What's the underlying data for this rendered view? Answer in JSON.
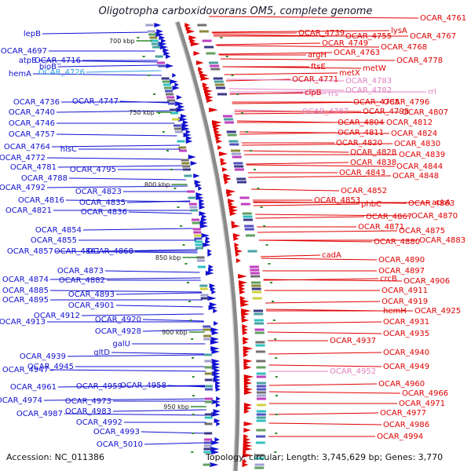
{
  "title": "Oligotropha carboxidovorans OM5, complete genome",
  "accession": "Accession: NC_011386",
  "topology": "Topology: circular; Length: 3,745,629 bp; Genes: 3,770",
  "colors": {
    "forward": "#e00000",
    "reverse": "#1010d0",
    "rna_forward": "#e080c0",
    "rna_reverse": "#30a0e0",
    "backbone": "#888888",
    "tick": "#2e8b2e"
  },
  "kbp_marks": [
    {
      "label": "700 kbp",
      "pos": 700
    },
    {
      "label": "750 kbp",
      "pos": 750
    },
    {
      "label": "800 kbp",
      "pos": 800
    },
    {
      "label": "850 kbp",
      "pos": 850
    },
    {
      "label": "900 kbp",
      "pos": 900
    },
    {
      "label": "950 kbp",
      "pos": 950
    }
  ],
  "left_labels": [
    {
      "text": "lepB",
      "color": "#1010d0"
    },
    {
      "text": "OCAR_4697",
      "color": "#1010d0"
    },
    {
      "text": "atpB",
      "color": "#1010d0"
    },
    {
      "text": "bioB",
      "color": "#1010d0"
    },
    {
      "text": "OCAR_4716",
      "color": "#1010d0"
    },
    {
      "text": "hemA",
      "color": "#1010d0"
    },
    {
      "text": "OCAR_4726",
      "color": "#30a0e0"
    },
    {
      "text": "OCAR_4736",
      "color": "#1010d0"
    },
    {
      "text": "OCAR_4747",
      "color": "#1010d0"
    },
    {
      "text": "OCAR_4740",
      "color": "#1010d0"
    },
    {
      "text": "OCAR_4746",
      "color": "#1010d0"
    },
    {
      "text": "OCAR_4757",
      "color": "#1010d0"
    },
    {
      "text": "OCAR_4764",
      "color": "#1010d0"
    },
    {
      "text": "hisC",
      "color": "#1010d0"
    },
    {
      "text": "OCAR_4772",
      "color": "#1010d0"
    },
    {
      "text": "OCAR_4781",
      "color": "#1010d0"
    },
    {
      "text": "OCAR_4795",
      "color": "#1010d0"
    },
    {
      "text": "OCAR_4788",
      "color": "#1010d0"
    },
    {
      "text": "OCAR_4792",
      "color": "#1010d0"
    },
    {
      "text": "OCAR_4823",
      "color": "#1010d0"
    },
    {
      "text": "OCAR_4816",
      "color": "#1010d0"
    },
    {
      "text": "OCAR_4835",
      "color": "#1010d0"
    },
    {
      "text": "OCAR_4821",
      "color": "#1010d0"
    },
    {
      "text": "OCAR_4836",
      "color": "#1010d0"
    },
    {
      "text": "OCAR_4854",
      "color": "#1010d0"
    },
    {
      "text": "OCAR_4855",
      "color": "#1010d0"
    },
    {
      "text": "OCAR_4857",
      "color": "#1010d0"
    },
    {
      "text": "OCAR_4861",
      "color": "#1010d0"
    },
    {
      "text": "OCAR_4868",
      "color": "#1010d0"
    },
    {
      "text": "OCAR_4873",
      "color": "#1010d0"
    },
    {
      "text": "OCAR_4874",
      "color": "#1010d0"
    },
    {
      "text": "OCAR_4882",
      "color": "#1010d0"
    },
    {
      "text": "OCAR_4885",
      "color": "#1010d0"
    },
    {
      "text": "OCAR_4893",
      "color": "#1010d0"
    },
    {
      "text": "OCAR_4895",
      "color": "#1010d0"
    },
    {
      "text": "OCAR_4901",
      "color": "#1010d0"
    },
    {
      "text": "OCAR_4912",
      "color": "#1010d0"
    },
    {
      "text": "OCAR_4913",
      "color": "#1010d0"
    },
    {
      "text": "OCAR_4920",
      "color": "#1010d0"
    },
    {
      "text": "OCAR_4928",
      "color": "#1010d0"
    },
    {
      "text": "galU",
      "color": "#1010d0"
    },
    {
      "text": "gltD",
      "color": "#1010d0"
    },
    {
      "text": "OCAR_4939",
      "color": "#1010d0"
    },
    {
      "text": "OCAR_4945",
      "color": "#1010d0"
    },
    {
      "text": "OCAR_4947",
      "color": "#1010d0"
    },
    {
      "text": "OCAR_4961",
      "color": "#1010d0"
    },
    {
      "text": "OCAR_4959",
      "color": "#1010d0"
    },
    {
      "text": "OCAR_4958",
      "color": "#1010d0"
    },
    {
      "text": "OCAR_4974",
      "color": "#1010d0"
    },
    {
      "text": "OCAR_4973",
      "color": "#1010d0"
    },
    {
      "text": "OCAR_4987",
      "color": "#1010d0"
    },
    {
      "text": "OCAR_4983",
      "color": "#1010d0"
    },
    {
      "text": "OCAR_4992",
      "color": "#1010d0"
    },
    {
      "text": "OCAR_4993",
      "color": "#1010d0"
    },
    {
      "text": "OCAR_5010",
      "color": "#1010d0"
    }
  ],
  "right_labels": [
    {
      "text": "OCAR_4761",
      "color": "#e00000"
    },
    {
      "text": "OCAR_4739",
      "color": "#e00000"
    },
    {
      "text": "lysA",
      "color": "#e00000"
    },
    {
      "text": "OCAR_4755",
      "color": "#e00000"
    },
    {
      "text": "OCAR_4767",
      "color": "#e00000"
    },
    {
      "text": "OCAR_4749",
      "color": "#e00000"
    },
    {
      "text": "OCAR_4768",
      "color": "#e00000"
    },
    {
      "text": "argH",
      "color": "#e00000"
    },
    {
      "text": "OCAR_4763",
      "color": "#e00000"
    },
    {
      "text": "OCAR_4778",
      "color": "#e00000"
    },
    {
      "text": "ftsE",
      "color": "#e00000"
    },
    {
      "text": "metX",
      "color": "#e00000"
    },
    {
      "text": "metW",
      "color": "#e00000"
    },
    {
      "text": "rrl",
      "color": "#e080c0"
    },
    {
      "text": "OCAR_4771",
      "color": "#e00000"
    },
    {
      "text": "OCAR_4783",
      "color": "#e080c0"
    },
    {
      "text": "rrs",
      "color": "#e080c0"
    },
    {
      "text": "clpB",
      "color": "#e00000"
    },
    {
      "text": "OCAR_4782",
      "color": "#e080c0"
    },
    {
      "text": "OCAR_4785",
      "color": "#e00000"
    },
    {
      "text": "OCAR_4796",
      "color": "#e00000"
    },
    {
      "text": "OCAR_4787",
      "color": "#e080c0"
    },
    {
      "text": "OCAR_4798",
      "color": "#e00000"
    },
    {
      "text": "OCAR_4807",
      "color": "#e00000"
    },
    {
      "text": "OCAR_4804",
      "color": "#e00000"
    },
    {
      "text": "OCAR_4812",
      "color": "#e00000"
    },
    {
      "text": "OCAR_4811",
      "color": "#e00000"
    },
    {
      "text": "OCAR_4824",
      "color": "#e00000"
    },
    {
      "text": "OCAR_4820",
      "color": "#e00000"
    },
    {
      "text": "OCAR_4830",
      "color": "#e00000"
    },
    {
      "text": "OCAR_4828",
      "color": "#e00000"
    },
    {
      "text": "OCAR_4839",
      "color": "#e00000"
    },
    {
      "text": "OCAR_4838",
      "color": "#e00000"
    },
    {
      "text": "OCAR_4844",
      "color": "#e00000"
    },
    {
      "text": "OCAR_4843",
      "color": "#e00000"
    },
    {
      "text": "OCAR_4848",
      "color": "#e00000"
    },
    {
      "text": "OCAR_4852",
      "color": "#e00000"
    },
    {
      "text": "OCAR_4853",
      "color": "#e00000"
    },
    {
      "text": "phbC",
      "color": "#e00000"
    },
    {
      "text": "OCAR_4863",
      "color": "#e00000"
    },
    {
      "text": "ackA",
      "color": "#e00000"
    },
    {
      "text": "OCAR_4867",
      "color": "#e00000"
    },
    {
      "text": "OCAR_4870",
      "color": "#e00000"
    },
    {
      "text": "OCAR_4871",
      "color": "#e00000"
    },
    {
      "text": "OCAR_4875",
      "color": "#e00000"
    },
    {
      "text": "OCAR_4880",
      "color": "#e00000"
    },
    {
      "text": "OCAR_4883",
      "color": "#e00000"
    },
    {
      "text": "cadA",
      "color": "#e00000"
    },
    {
      "text": "OCAR_4890",
      "color": "#e00000"
    },
    {
      "text": "OCAR_4897",
      "color": "#e00000"
    },
    {
      "text": "crcB",
      "color": "#e00000"
    },
    {
      "text": "OCAR_4906",
      "color": "#e00000"
    },
    {
      "text": "OCAR_4911",
      "color": "#e00000"
    },
    {
      "text": "OCAR_4919",
      "color": "#e00000"
    },
    {
      "text": "hemH",
      "color": "#e00000"
    },
    {
      "text": "OCAR_4925",
      "color": "#e00000"
    },
    {
      "text": "OCAR_4931",
      "color": "#e00000"
    },
    {
      "text": "OCAR_4935",
      "color": "#e00000"
    },
    {
      "text": "OCAR_4937",
      "color": "#e00000"
    },
    {
      "text": "OCAR_4940",
      "color": "#e00000"
    },
    {
      "text": "OCAR_4949",
      "color": "#e00000"
    },
    {
      "text": "OCAR_4952",
      "color": "#e080c0"
    },
    {
      "text": "OCAR_4960",
      "color": "#e00000"
    },
    {
      "text": "OCAR_4966",
      "color": "#e00000"
    },
    {
      "text": "OCAR_4971",
      "color": "#e00000"
    },
    {
      "text": "OCAR_4977",
      "color": "#e00000"
    },
    {
      "text": "OCAR_4986",
      "color": "#e00000"
    },
    {
      "text": "OCAR_4994",
      "color": "#e00000"
    }
  ]
}
